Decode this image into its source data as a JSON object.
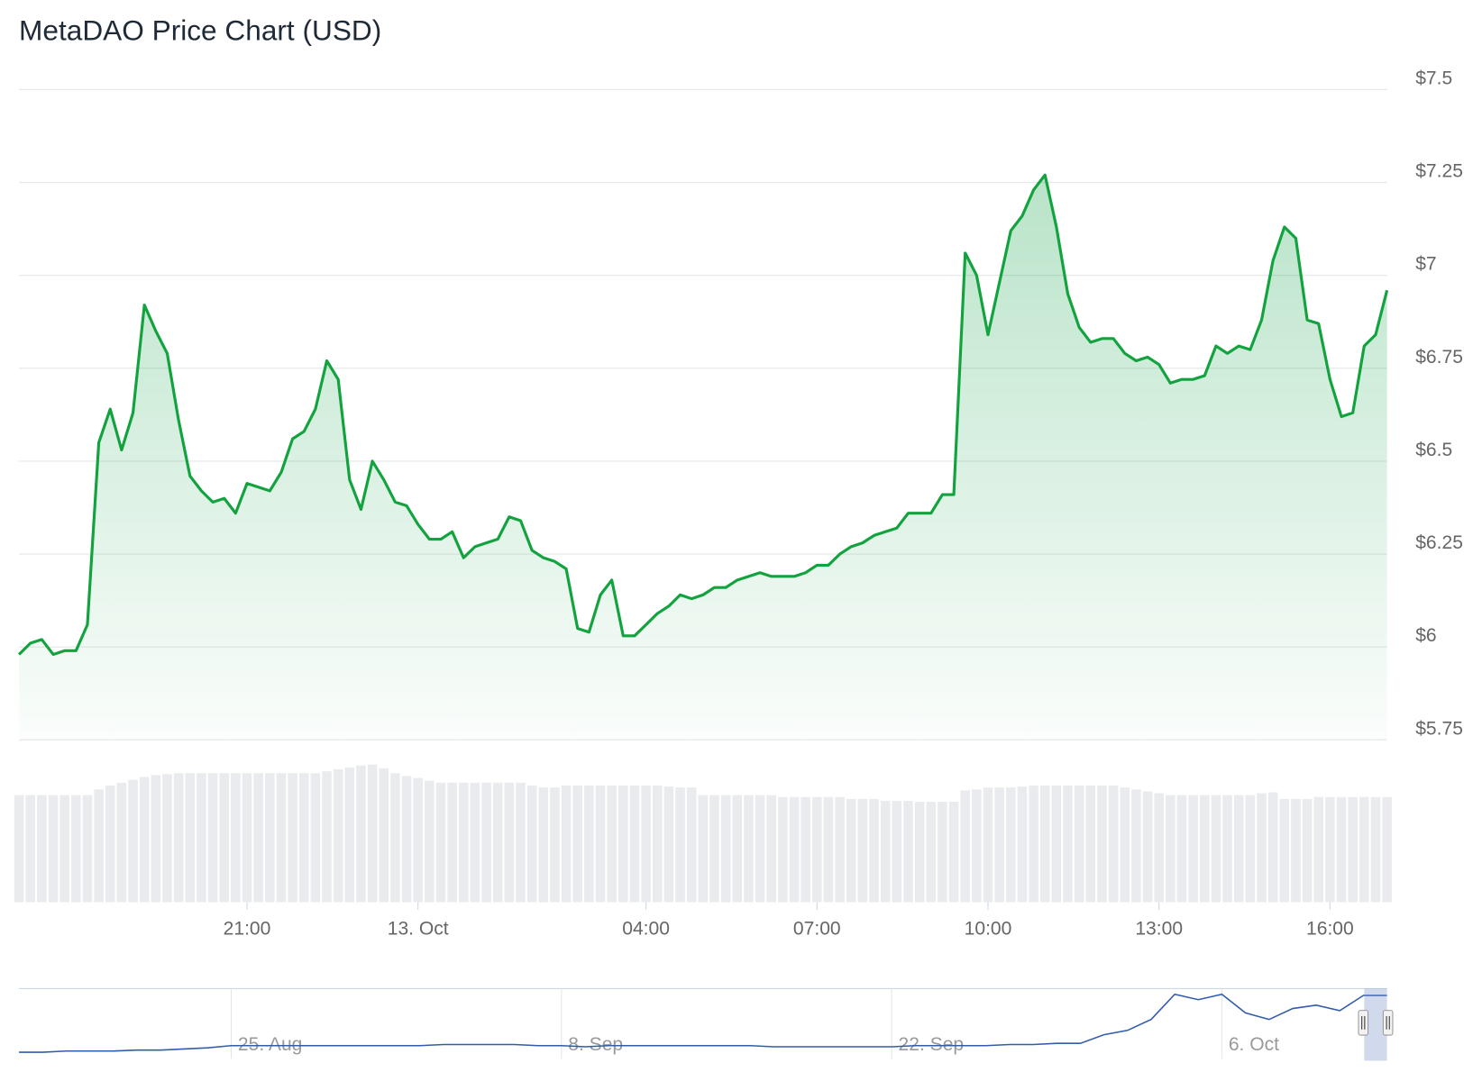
{
  "chart_data": {
    "type": "line",
    "title": "MetaDAO Price Chart (USD)",
    "x": [
      17,
      17.2,
      17.4,
      17.6,
      17.8,
      18,
      18.2,
      18.4,
      18.6,
      18.8,
      19,
      19.2,
      19.4,
      19.6,
      19.8,
      20,
      20.2,
      20.4,
      20.6,
      20.8,
      21,
      21.2,
      21.4,
      21.6,
      21.8,
      22,
      22.2,
      22.4,
      22.6,
      22.8,
      23,
      23.2,
      23.4,
      23.6,
      23.8,
      24,
      24.2,
      24.4,
      24.6,
      24.8,
      25,
      25.2,
      25.4,
      25.6,
      25.8,
      26,
      26.2,
      26.4,
      26.6,
      26.8,
      27,
      27.2,
      27.4,
      27.6,
      27.8,
      28,
      28.2,
      28.4,
      28.6,
      28.8,
      29,
      29.2,
      29.4,
      29.6,
      29.8,
      30,
      30.2,
      30.4,
      30.6,
      30.8,
      31,
      31.2,
      31.4,
      31.6,
      31.8,
      32,
      32.2,
      32.4,
      32.6,
      32.8,
      33,
      33.2,
      33.4,
      33.6,
      33.8,
      34,
      34.2,
      34.4,
      34.6,
      34.8,
      35,
      35.2,
      35.4,
      35.6,
      35.8,
      36,
      36.2,
      36.4,
      36.6,
      36.8,
      37,
      37.2,
      37.4,
      37.6,
      37.8,
      38,
      38.2,
      38.4,
      38.6,
      38.8,
      39,
      39.2,
      39.4,
      39.6,
      39.8,
      40,
      40.2,
      40.4,
      40.6,
      40.8,
      41
    ],
    "series": [
      {
        "color": "#12a33f",
        "values": [
          5.98,
          6.01,
          6.02,
          5.98,
          5.99,
          5.99,
          6.06,
          6.55,
          6.64,
          6.53,
          6.63,
          6.92,
          6.85,
          6.79,
          6.61,
          6.46,
          6.42,
          6.39,
          6.4,
          6.36,
          6.44,
          6.43,
          6.42,
          6.47,
          6.56,
          6.58,
          6.64,
          6.77,
          6.72,
          6.45,
          6.37,
          6.5,
          6.45,
          6.39,
          6.38,
          6.33,
          6.29,
          6.29,
          6.31,
          6.24,
          6.27,
          6.28,
          6.29,
          6.35,
          6.34,
          6.26,
          6.24,
          6.23,
          6.21,
          6.05,
          6.04,
          6.14,
          6.18,
          6.03,
          6.03,
          6.06,
          6.09,
          6.11,
          6.14,
          6.13,
          6.14,
          6.16,
          6.16,
          6.18,
          6.19,
          6.2,
          6.19,
          6.19,
          6.19,
          6.2,
          6.22,
          6.22,
          6.25,
          6.27,
          6.28,
          6.3,
          6.31,
          6.32,
          6.36,
          6.36,
          6.36,
          6.41,
          6.41,
          7.06,
          7.0,
          6.84,
          6.98,
          7.12,
          7.16,
          7.23,
          7.27,
          7.13,
          6.95,
          6.86,
          6.82,
          6.83,
          6.83,
          6.79,
          6.77,
          6.78,
          6.76,
          6.71,
          6.72,
          6.72,
          6.73,
          6.81,
          6.79,
          6.81,
          6.8,
          6.88,
          7.04,
          7.13,
          7.1,
          6.88,
          6.87,
          6.72,
          6.62,
          6.63,
          6.81,
          6.84,
          6.96
        ]
      }
    ],
    "xlim": [
      17,
      41
    ],
    "xticks": [
      {
        "value": 21,
        "label": "21:00"
      },
      {
        "value": 24,
        "label": "13. Oct"
      },
      {
        "value": 28,
        "label": "04:00"
      },
      {
        "value": 31,
        "label": "07:00"
      },
      {
        "value": 34,
        "label": "10:00"
      },
      {
        "value": 37,
        "label": "13:00"
      },
      {
        "value": 40,
        "label": "16:00"
      }
    ],
    "ylim": [
      5.75,
      7.5
    ],
    "yticks": [
      {
        "value": 5.75,
        "label": "$5.75"
      },
      {
        "value": 6,
        "label": "$6"
      },
      {
        "value": 6.25,
        "label": "$6.25"
      },
      {
        "value": 6.5,
        "label": "$6.5"
      },
      {
        "value": 6.75,
        "label": "$6.75"
      },
      {
        "value": 7,
        "label": "$7"
      },
      {
        "value": 7.25,
        "label": "$7.25"
      },
      {
        "value": 7.5,
        "label": "$7.5"
      }
    ],
    "grid": true,
    "volume": {
      "color": "#e9ebee",
      "values": [
        112,
        112,
        112,
        112,
        112,
        112,
        112,
        118,
        122,
        125,
        128,
        131,
        133,
        134,
        135,
        135,
        135,
        135,
        135,
        135,
        135,
        135,
        135,
        135,
        135,
        135,
        135,
        137,
        139,
        141,
        143,
        144,
        140,
        135,
        132,
        130,
        127,
        125,
        125,
        125,
        125,
        125,
        125,
        125,
        125,
        122,
        120,
        120,
        122,
        122,
        122,
        122,
        122,
        122,
        122,
        122,
        122,
        121,
        120,
        120,
        112,
        112,
        112,
        112,
        112,
        112,
        112,
        110,
        110,
        110,
        110,
        110,
        110,
        108,
        108,
        108,
        106,
        106,
        106,
        105,
        105,
        105,
        105,
        117,
        118,
        120,
        120,
        120,
        121,
        122,
        122,
        122,
        122,
        122,
        122,
        122,
        122,
        120,
        118,
        116,
        114,
        112,
        112,
        112,
        112,
        112,
        112,
        112,
        112,
        114,
        115,
        108,
        108,
        108,
        110,
        110,
        110,
        110,
        110,
        110,
        110
      ]
    },
    "navigator": {
      "color": "#335cad",
      "categories": [
        null,
        null,
        null,
        null,
        null,
        null,
        null,
        null,
        null,
        "25. Aug",
        null,
        null,
        null,
        null,
        null,
        null,
        null,
        null,
        null,
        null,
        null,
        null,
        null,
        "8. Sep",
        null,
        null,
        null,
        null,
        null,
        null,
        null,
        null,
        null,
        null,
        null,
        null,
        null,
        "22. Sep",
        null,
        null,
        null,
        null,
        null,
        null,
        null,
        null,
        null,
        null,
        null,
        null,
        null,
        "6. Oct",
        null,
        null,
        null,
        null,
        null,
        null,
        null
      ],
      "values": [
        2.61,
        2.61,
        2.7,
        2.7,
        2.7,
        2.78,
        2.78,
        2.87,
        2.96,
        3.13,
        3.13,
        3.13,
        3.13,
        3.13,
        3.13,
        3.13,
        3.13,
        3.13,
        3.22,
        3.22,
        3.22,
        3.22,
        3.13,
        3.13,
        3.04,
        3.13,
        3.13,
        3.13,
        3.13,
        3.13,
        3.13,
        3.13,
        3.04,
        3.04,
        3.04,
        3.04,
        3.04,
        3.04,
        3.13,
        3.13,
        3.13,
        3.13,
        3.22,
        3.22,
        3.31,
        3.31,
        4.0,
        4.35,
        5.22,
        7.22,
        6.79,
        7.22,
        5.74,
        5.22,
        6.09,
        6.35,
        5.92,
        7.13,
        7.13
      ]
    }
  }
}
